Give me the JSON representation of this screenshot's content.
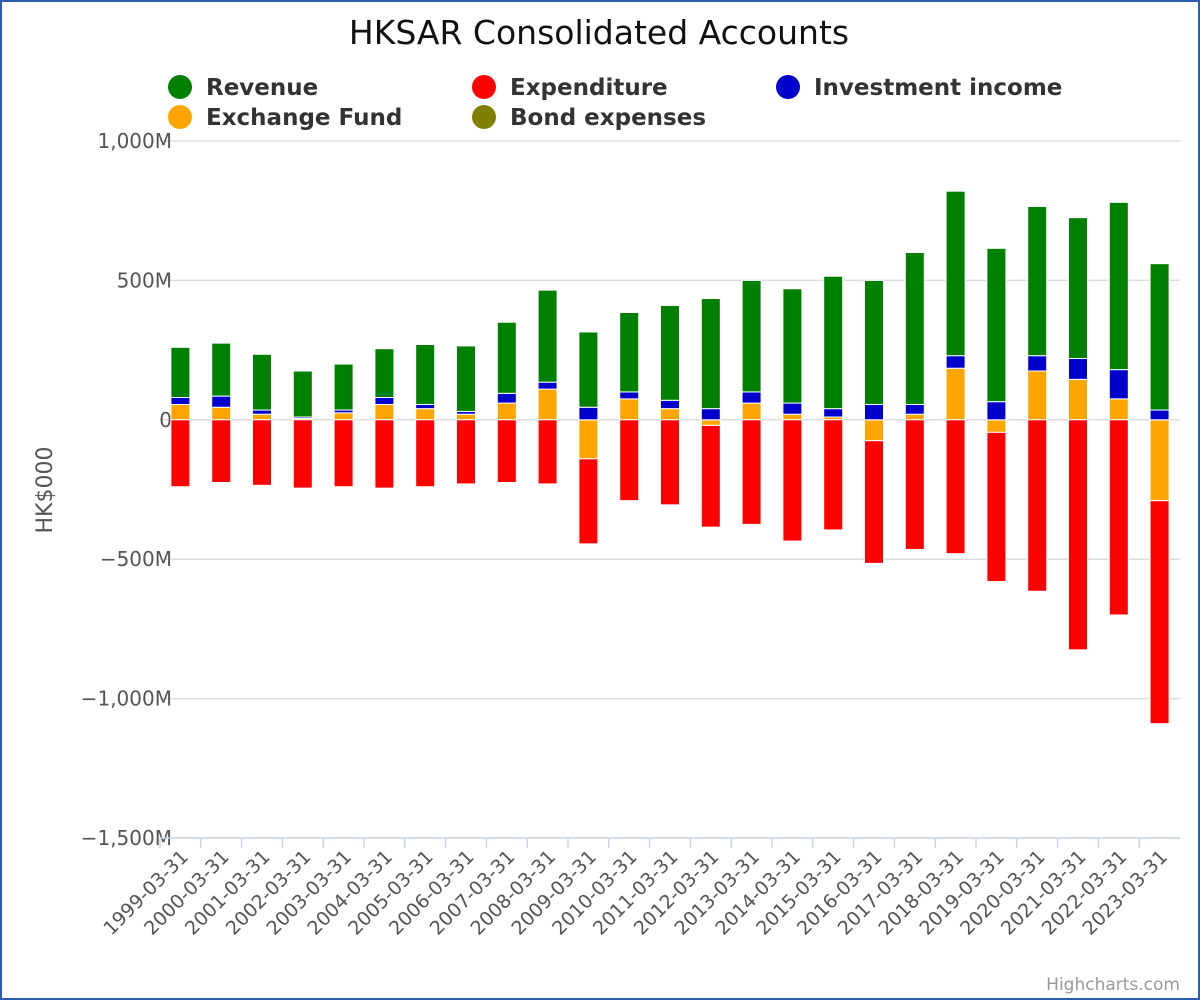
{
  "chart_data": {
    "type": "bar",
    "stacked": true,
    "title": "HKSAR Consolidated Accounts",
    "ylabel": "HK$000",
    "xlabel": "",
    "ylim": [
      -1500,
      1000
    ],
    "yticks": [
      {
        "value": 1000,
        "label": "1,000M"
      },
      {
        "value": 500,
        "label": "500M"
      },
      {
        "value": 0,
        "label": "0"
      },
      {
        "value": -500,
        "label": "−500M"
      },
      {
        "value": -1000,
        "label": "−1,000M"
      },
      {
        "value": -1500,
        "label": "−1,500M"
      }
    ],
    "categories": [
      "1999-03-31",
      "2000-03-31",
      "2001-03-31",
      "2002-03-31",
      "2003-03-31",
      "2004-03-31",
      "2005-03-31",
      "2006-03-31",
      "2007-03-31",
      "2008-03-31",
      "2009-03-31",
      "2010-03-31",
      "2011-03-31",
      "2012-03-31",
      "2013-03-31",
      "2014-03-31",
      "2015-03-31",
      "2016-03-31",
      "2017-03-31",
      "2018-03-31",
      "2019-03-31",
      "2020-03-31",
      "2021-03-31",
      "2022-03-31",
      "2023-03-31"
    ],
    "legend_position": "top",
    "series": [
      {
        "name": "Exchange Fund",
        "color": "#ffa500",
        "values": [
          55,
          45,
          20,
          5,
          25,
          55,
          40,
          20,
          60,
          110,
          -140,
          75,
          40,
          -20,
          60,
          20,
          10,
          -75,
          20,
          185,
          -45,
          175,
          145,
          75,
          -290
        ]
      },
      {
        "name": "Expenditure",
        "color": "#ff0000",
        "values": [
          -240,
          -225,
          -235,
          -245,
          -240,
          -245,
          -240,
          -230,
          -225,
          -230,
          -305,
          -290,
          -305,
          -365,
          -375,
          -435,
          -395,
          -440,
          -465,
          -480,
          -535,
          -615,
          -825,
          -700,
          -800
        ]
      },
      {
        "name": "Investment income",
        "color": "#0000cc",
        "values": [
          25,
          40,
          15,
          5,
          10,
          25,
          15,
          10,
          35,
          25,
          45,
          25,
          30,
          40,
          40,
          40,
          30,
          55,
          35,
          45,
          65,
          55,
          75,
          105,
          35
        ]
      },
      {
        "name": "Revenue",
        "color": "#008000",
        "values": [
          180,
          190,
          200,
          165,
          165,
          175,
          215,
          235,
          255,
          330,
          270,
          285,
          340,
          395,
          400,
          410,
          475,
          445,
          545,
          590,
          550,
          535,
          505,
          600,
          525
        ]
      },
      {
        "name": "Bond expenses",
        "color": "#808000",
        "values": [
          0,
          0,
          0,
          0,
          0,
          0,
          0,
          0,
          0,
          0,
          0,
          0,
          0,
          0,
          0,
          0,
          0,
          0,
          0,
          0,
          0,
          0,
          0,
          0,
          0
        ]
      }
    ],
    "legend": [
      {
        "name": "Revenue",
        "color": "#008000"
      },
      {
        "name": "Expenditure",
        "color": "#ff0000"
      },
      {
        "name": "Investment income",
        "color": "#0000cc"
      },
      {
        "name": "Exchange Fund",
        "color": "#ffa500"
      },
      {
        "name": "Bond expenses",
        "color": "#808000"
      }
    ],
    "credit": "Highcharts.com"
  }
}
